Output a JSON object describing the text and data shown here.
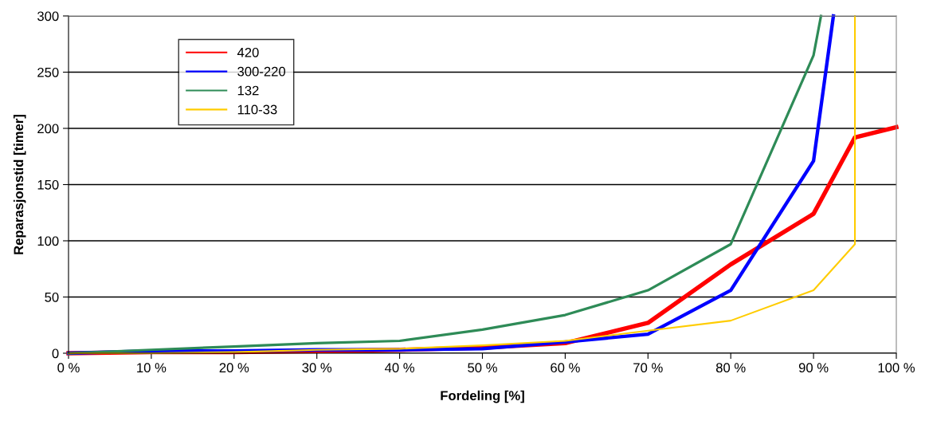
{
  "chart_data": {
    "type": "line",
    "xlabel": "Fordeling [%]",
    "ylabel": "Reparasjonstid [timer]",
    "xlim": [
      0,
      100
    ],
    "ylim": [
      0,
      300
    ],
    "xticks": [
      {
        "value": 0,
        "label": "0 %"
      },
      {
        "value": 10,
        "label": "10 %"
      },
      {
        "value": 20,
        "label": "20 %"
      },
      {
        "value": 30,
        "label": "30 %"
      },
      {
        "value": 40,
        "label": "40 %"
      },
      {
        "value": 50,
        "label": "50 %"
      },
      {
        "value": 60,
        "label": "60 %"
      },
      {
        "value": 70,
        "label": "70 %"
      },
      {
        "value": 80,
        "label": "80 %"
      },
      {
        "value": 90,
        "label": "90 %"
      },
      {
        "value": 100,
        "label": "100 %"
      }
    ],
    "yticks": [
      0,
      50,
      100,
      150,
      200,
      250,
      300
    ],
    "grid": "y",
    "legend": "top left",
    "marker": "none",
    "line_style": "solid",
    "series": [
      {
        "name": "420",
        "color": "#ff0000",
        "x": [
          0,
          10,
          20,
          30,
          40,
          50,
          60,
          70,
          80,
          90,
          95,
          100
        ],
        "values": [
          0,
          1,
          1,
          2,
          3,
          5,
          9,
          27,
          79,
          124,
          192,
          201
        ]
      },
      {
        "name": "300-220",
        "color": "#0000ff",
        "x": [
          0,
          10,
          20,
          30,
          40,
          50,
          60,
          70,
          80,
          90,
          92.4
        ],
        "values": [
          0,
          2,
          2,
          3,
          3,
          4,
          10,
          17,
          56,
          171,
          300
        ]
      },
      {
        "name": "132",
        "color": "#2e8b57",
        "x": [
          0,
          10,
          20,
          30,
          40,
          50,
          60,
          70,
          80,
          90,
          90.9
        ],
        "values": [
          0,
          3,
          6,
          9,
          11,
          21,
          34,
          56,
          97,
          265,
          300
        ]
      },
      {
        "name": "110-33",
        "color": "#ffcc00",
        "x": [
          0,
          10,
          20,
          30,
          40,
          50,
          60,
          70,
          80,
          90,
          95,
          95
        ],
        "values": [
          0,
          0,
          1,
          3,
          4,
          7,
          11,
          20,
          29,
          56,
          97,
          300
        ]
      }
    ]
  }
}
